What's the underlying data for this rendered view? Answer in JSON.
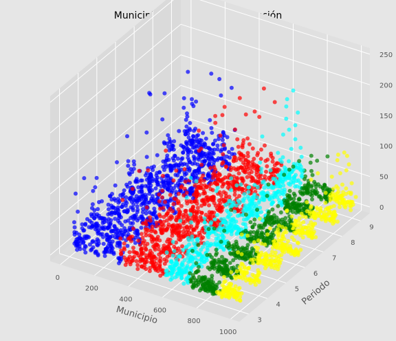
{
  "chart_data": {
    "type": "scatter",
    "projection": "3d",
    "title": "Municipio vs Periodo vs Producción",
    "xlabel": "Municipio",
    "ylabel": "Periodo",
    "zlabel": "",
    "x_ticks": [
      "0",
      "200",
      "400",
      "600",
      "800",
      "1000"
    ],
    "y_ticks": [
      "3",
      "4",
      "5",
      "6",
      "7",
      "8",
      "9"
    ],
    "z_ticks": [
      "0",
      "50",
      "100",
      "150",
      "200",
      "250"
    ],
    "xlim": [
      -60,
      1050
    ],
    "ylim": [
      2.5,
      9.5
    ],
    "zlim": [
      -10,
      260
    ],
    "grid": true,
    "background": "#e6e6e6",
    "series": [
      {
        "color": "#0000ff",
        "x_range": [
          0,
          290
        ],
        "approx_points": 900
      },
      {
        "color": "#ff0000",
        "x_range": [
          290,
          560
        ],
        "approx_points": 800
      },
      {
        "color": "#00ffff",
        "x_range": [
          560,
          700
        ],
        "approx_points": 550
      },
      {
        "color": "#008000",
        "x_range": [
          700,
          860
        ],
        "approx_points": 600
      },
      {
        "color": "#ffff00",
        "x_range": [
          860,
          1000
        ],
        "approx_points": 500
      }
    ]
  }
}
